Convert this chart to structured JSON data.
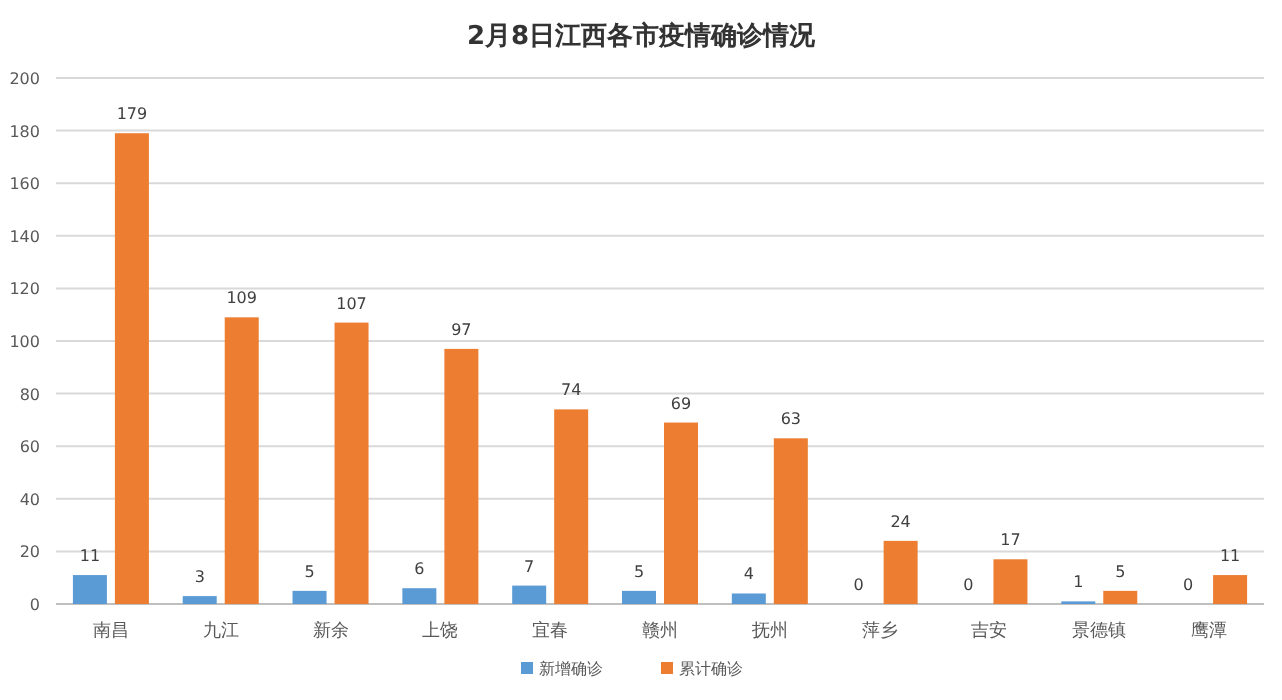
{
  "chart_data": {
    "type": "bar",
    "title": "2月8日江西各市疫情确诊情况",
    "categories": [
      "南昌",
      "九江",
      "新余",
      "上饶",
      "宜春",
      "赣州",
      "抚州",
      "萍乡",
      "吉安",
      "景德镇",
      "鹰潭"
    ],
    "series": [
      {
        "name": "新增确诊",
        "color": "#5b9bd5",
        "values": [
          11,
          3,
          5,
          6,
          7,
          5,
          4,
          0,
          0,
          1,
          0
        ]
      },
      {
        "name": "累计确诊",
        "color": "#ed7d31",
        "values": [
          179,
          109,
          107,
          97,
          74,
          69,
          63,
          24,
          17,
          5,
          11
        ]
      }
    ],
    "ylim": [
      0,
      200
    ],
    "yticks": [
      0,
      20,
      40,
      60,
      80,
      100,
      120,
      140,
      160,
      180,
      200
    ],
    "grid": "y",
    "legend": "bottom",
    "data_labels": true
  }
}
